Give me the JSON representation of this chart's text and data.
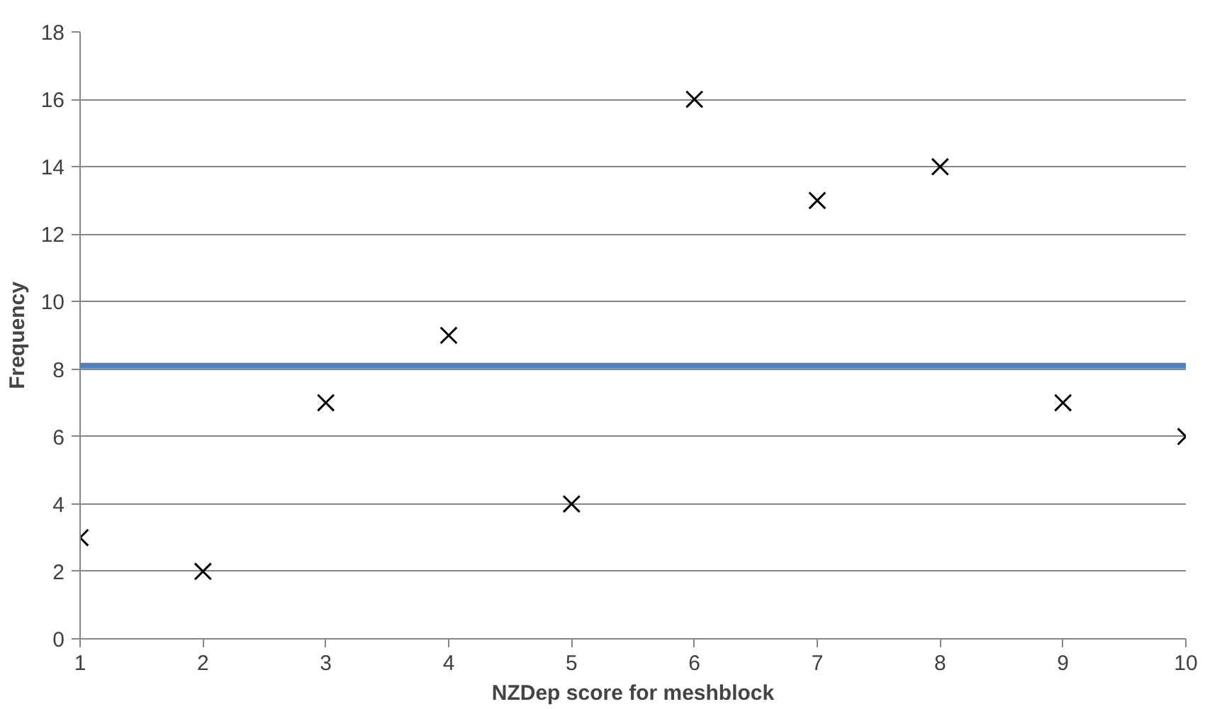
{
  "chart_data": {
    "type": "scatter",
    "xlabel": "NZDep score for meshblock",
    "ylabel": "Frequency",
    "x": [
      1,
      2,
      3,
      4,
      5,
      6,
      7,
      8,
      9,
      10
    ],
    "values": [
      3,
      2,
      7,
      9,
      4,
      16,
      13,
      14,
      7,
      6
    ],
    "color": "#000000",
    "marker": "cross",
    "xlim": [
      1,
      10
    ],
    "xticks": [
      1,
      2,
      3,
      4,
      5,
      6,
      7,
      8,
      9,
      10
    ],
    "ylim": [
      0,
      18
    ],
    "yticks": [
      0,
      2,
      4,
      6,
      8,
      10,
      12,
      14,
      16,
      18
    ],
    "grid": "y",
    "ref_lines": [
      {
        "axis": "y",
        "value": 8.1,
        "color": "#4f81bd"
      }
    ]
  }
}
